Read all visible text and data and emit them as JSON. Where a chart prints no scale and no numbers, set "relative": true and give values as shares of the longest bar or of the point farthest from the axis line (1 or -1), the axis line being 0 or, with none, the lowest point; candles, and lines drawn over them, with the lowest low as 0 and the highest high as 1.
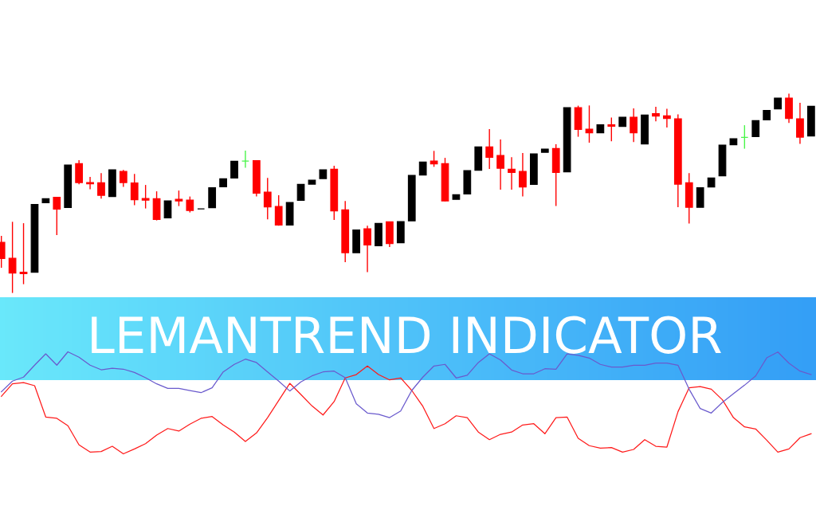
{
  "chart_data": [
    {
      "type": "candlestick",
      "title": "LEMANTREND INDICATOR",
      "relative": true,
      "categories": [
        null,
        null,
        null,
        null,
        null,
        null,
        null,
        null,
        null,
        null,
        null,
        null,
        null,
        null,
        null,
        null,
        null,
        null,
        null,
        null,
        null,
        null,
        null,
        null,
        null,
        null,
        null,
        null,
        null,
        null,
        null,
        null,
        null,
        null,
        null,
        null,
        null,
        null,
        null,
        null,
        null,
        null,
        null,
        null,
        null,
        null,
        null,
        null,
        null,
        null,
        null,
        null,
        null,
        null,
        null,
        null,
        null,
        null,
        null,
        null,
        null,
        null,
        null,
        null,
        null,
        null,
        null,
        null,
        null,
        null,
        null,
        null,
        null,
        null
      ],
      "ohlc": [
        [
          0.254,
          0.286,
          0.126,
          0.173
        ],
        [
          0.174,
          0.357,
          0,
          0.1
        ],
        [
          0.104,
          0.35,
          0.044,
          0.097
        ],
        [
          0.104,
          0.444,
          0.104,
          0.444
        ],
        [
          0.453,
          0.473,
          0.453,
          0.473
        ],
        [
          0.48,
          0.48,
          0.29,
          0.421
        ],
        [
          0.429,
          0.642,
          0.429,
          0.642
        ],
        [
          0.649,
          0.666,
          0.545,
          0.554
        ],
        [
          0.554,
          0.582,
          0.52,
          0.548
        ],
        [
          0.553,
          0.601,
          0.473,
          0.49
        ],
        [
          0.484,
          0.618,
          0.484,
          0.618
        ],
        [
          0.61,
          0.617,
          0.532,
          0.554
        ],
        [
          0.552,
          0.597,
          0.44,
          0.468
        ],
        [
          0.474,
          0.542,
          0.424,
          0.466
        ],
        [
          0.473,
          0.51,
          0.364,
          0.369
        ],
        [
          0.377,
          0.462,
          0.377,
          0.462
        ],
        [
          0.47,
          0.514,
          0.436,
          0.462
        ],
        [
          0.466,
          0.484,
          0.404,
          0.414
        ],
        [
          0.422,
          0.422,
          0.422,
          0.422
        ],
        [
          0.428,
          0.528,
          0.428,
          0.528
        ],
        [
          0.533,
          0.573,
          0.533,
          0.573
        ],
        [
          0.577,
          0.661,
          0.577,
          0.661
        ],
        [
          0.662,
          0.714,
          0.628,
          0.662
        ],
        [
          0.664,
          0.664,
          0.484,
          0.501
        ],
        [
          0.506,
          0.577,
          0.369,
          0.432
        ],
        [
          0.434,
          0.49,
          0.337,
          0.341
        ],
        [
          0.341,
          0.454,
          0.341,
          0.454
        ],
        [
          0.465,
          0.545,
          0.465,
          0.545
        ],
        [
          0.546,
          0.566,
          0.546,
          0.566
        ],
        [
          0.574,
          0.618,
          0.574,
          0.618
        ],
        [
          0.621,
          0.638,
          0.366,
          0.412
        ],
        [
          0.417,
          0.461,
          0.154,
          0.202
        ],
        [
          0.202,
          0.316,
          0.202,
          0.316
        ],
        [
          0.322,
          0.337,
          0.104,
          0.241
        ],
        [
          0.237,
          0.349,
          0.237,
          0.349
        ],
        [
          0.357,
          0.357,
          0.23,
          0.248
        ],
        [
          0.252,
          0.358,
          0.252,
          0.358
        ],
        [
          0.362,
          0.59,
          0.362,
          0.59
        ],
        [
          0.592,
          0.657,
          0.592,
          0.657
        ],
        [
          0.662,
          0.713,
          0.633,
          0.648
        ],
        [
          0.649,
          0.678,
          0.46,
          0.462
        ],
        [
          0.47,
          0.493,
          0.47,
          0.493
        ],
        [
          0.497,
          0.614,
          0.497,
          0.614
        ],
        [
          0.616,
          0.733,
          0.616,
          0.733
        ],
        [
          0.733,
          0.822,
          0.622,
          0.681
        ],
        [
          0.69,
          0.77,
          0.518,
          0.626
        ],
        [
          0.621,
          0.681,
          0.518,
          0.605
        ],
        [
          0.61,
          0.702,
          0.484,
          0.532
        ],
        [
          0.545,
          0.698,
          0.545,
          0.698
        ],
        [
          0.706,
          0.722,
          0.706,
          0.722
        ],
        [
          0.725,
          0.746,
          0.436,
          0.605
        ],
        [
          0.608,
          0.93,
          0.608,
          0.93
        ],
        [
          0.93,
          0.94,
          0.784,
          0.821
        ],
        [
          0.822,
          0.941,
          0.754,
          0.804
        ],
        [
          0.804,
          0.844,
          0.804,
          0.844
        ],
        [
          0.844,
          0.88,
          0.761,
          0.837
        ],
        [
          0.836,
          0.882,
          0.836,
          0.882
        ],
        [
          0.882,
          0.926,
          0.757,
          0.804
        ],
        [
          0.748,
          0.893,
          0.748,
          0.893
        ],
        [
          0.9,
          0.934,
          0.861,
          0.888
        ],
        [
          0.889,
          0.924,
          0.83,
          0.876
        ],
        [
          0.874,
          0.896,
          0.43,
          0.546
        ],
        [
          0.553,
          0.601,
          0.348,
          0.43
        ],
        [
          0.43,
          0.528,
          0.43,
          0.528
        ],
        [
          0.532,
          0.577,
          0.532,
          0.577
        ],
        [
          0.588,
          0.742,
          0.588,
          0.742
        ],
        [
          0.744,
          0.774,
          0.744,
          0.774
        ],
        [
          0.781,
          0.842,
          0.724,
          0.781
        ],
        [
          0.785,
          0.865,
          0.785,
          0.865
        ],
        [
          0.869,
          0.916,
          0.869,
          0.916
        ],
        [
          0.924,
          0.978,
          0.924,
          0.978
        ],
        [
          0.978,
          1,
          0.853,
          0.876
        ],
        [
          0.874,
          0.954,
          0.748,
          0.782
        ],
        [
          0.788,
          0.937,
          0.788,
          0.937
        ]
      ],
      "colors": [
        "#ff0000",
        "#ff0000",
        "#ff0000",
        "#000000",
        "#000000",
        "#ff0000",
        "#000000",
        "#ff0000",
        "#ff0000",
        "#ff0000",
        "#000000",
        "#ff0000",
        "#ff0000",
        "#ff0000",
        "#ff0000",
        "#000000",
        "#ff0000",
        "#ff0000",
        "#000000",
        "#000000",
        "#000000",
        "#000000",
        "#49f549",
        "#ff0000",
        "#ff0000",
        "#ff0000",
        "#000000",
        "#000000",
        "#000000",
        "#000000",
        "#ff0000",
        "#ff0000",
        "#000000",
        "#ff0000",
        "#000000",
        "#ff0000",
        "#000000",
        "#000000",
        "#000000",
        "#ff0000",
        "#ff0000",
        "#000000",
        "#000000",
        "#000000",
        "#ff0000",
        "#ff0000",
        "#ff0000",
        "#ff0000",
        "#000000",
        "#000000",
        "#ff0000",
        "#000000",
        "#ff0000",
        "#ff0000",
        "#000000",
        "#ff0000",
        "#000000",
        "#ff0000",
        "#000000",
        "#ff0000",
        "#ff0000",
        "#ff0000",
        "#ff0000",
        "#000000",
        "#000000",
        "#000000",
        "#000000",
        "#49f549",
        "#000000",
        "#000000",
        "#000000",
        "#ff0000",
        "#ff0000",
        "#000000"
      ]
    },
    {
      "type": "line",
      "relative": true,
      "categories": [
        null,
        null,
        null,
        null,
        null,
        null,
        null,
        null,
        null,
        null,
        null,
        null,
        null,
        null,
        null,
        null,
        null,
        null,
        null,
        null,
        null,
        null,
        null,
        null,
        null,
        null,
        null,
        null,
        null,
        null,
        null,
        null,
        null,
        null,
        null,
        null,
        null,
        null,
        null,
        null,
        null,
        null,
        null,
        null,
        null,
        null,
        null,
        null,
        null,
        null,
        null,
        null,
        null,
        null,
        null,
        null,
        null,
        null,
        null,
        null,
        null,
        null,
        null,
        null,
        null,
        null,
        null,
        null,
        null,
        null,
        null,
        null,
        null,
        null
      ],
      "series": [
        {
          "color": "#ff1a1a",
          "values": [
            0.564,
            0.686,
            0.699,
            0.668,
            0.361,
            0.348,
            0.275,
            0.088,
            0.017,
            0.022,
            0.074,
            0,
            0.048,
            0.1,
            0.184,
            0.248,
            0.223,
            0.291,
            0.348,
            0.366,
            0.283,
            0.213,
            0.121,
            0.205,
            0.355,
            0.522,
            0.691,
            0.582,
            0.47,
            0.381,
            0.512,
            0.744,
            0.777,
            0.861,
            0.777,
            0.725,
            0.744,
            0.621,
            0.465,
            0.248,
            0.295,
            0.373,
            0.355,
            0.213,
            0.139,
            0.191,
            0.213,
            0.283,
            0.295,
            0.197,
            0.355,
            0.361,
            0.152,
            0.08,
            0.056,
            0.061,
            0.017,
            0.043,
            0.139,
            0.074,
            0.066,
            0.413,
            0.647,
            0.66,
            0.634,
            0.53,
            0.355,
            0.264,
            0.244,
            0.134,
            0.017,
            0.048,
            0.158,
            0.197
          ]
        },
        {
          "color": "#6a5acd",
          "values": [
            0.608,
            0.713,
            0.752,
            0.869,
            0.98,
            0.869,
            1,
            0.947,
            0.869,
            0.824,
            0.838,
            0.83,
            0.798,
            0.746,
            0.686,
            0.642,
            0.642,
            0.621,
            0.6,
            0.647,
            0.803,
            0.877,
            0.928,
            0.895,
            0.803,
            0.713,
            0.616,
            0.705,
            0.764,
            0.803,
            0.811,
            0.746,
            0.491,
            0.4,
            0.387,
            0.355,
            0.42,
            0.621,
            0.752,
            0.861,
            0.877,
            0.744,
            0.77,
            0.895,
            0.98,
            0.92,
            0.822,
            0.785,
            0.785,
            0.834,
            0.83,
            0.98,
            0.965,
            0.939,
            0.877,
            0.85,
            0.85,
            0.869,
            0.869,
            0.889,
            0.889,
            0.869,
            0.634,
            0.444,
            0.4,
            0.504,
            0.59,
            0.673,
            0.764,
            0.941,
            0.998,
            0.889,
            0.811,
            0.777
          ]
        }
      ]
    }
  ]
}
